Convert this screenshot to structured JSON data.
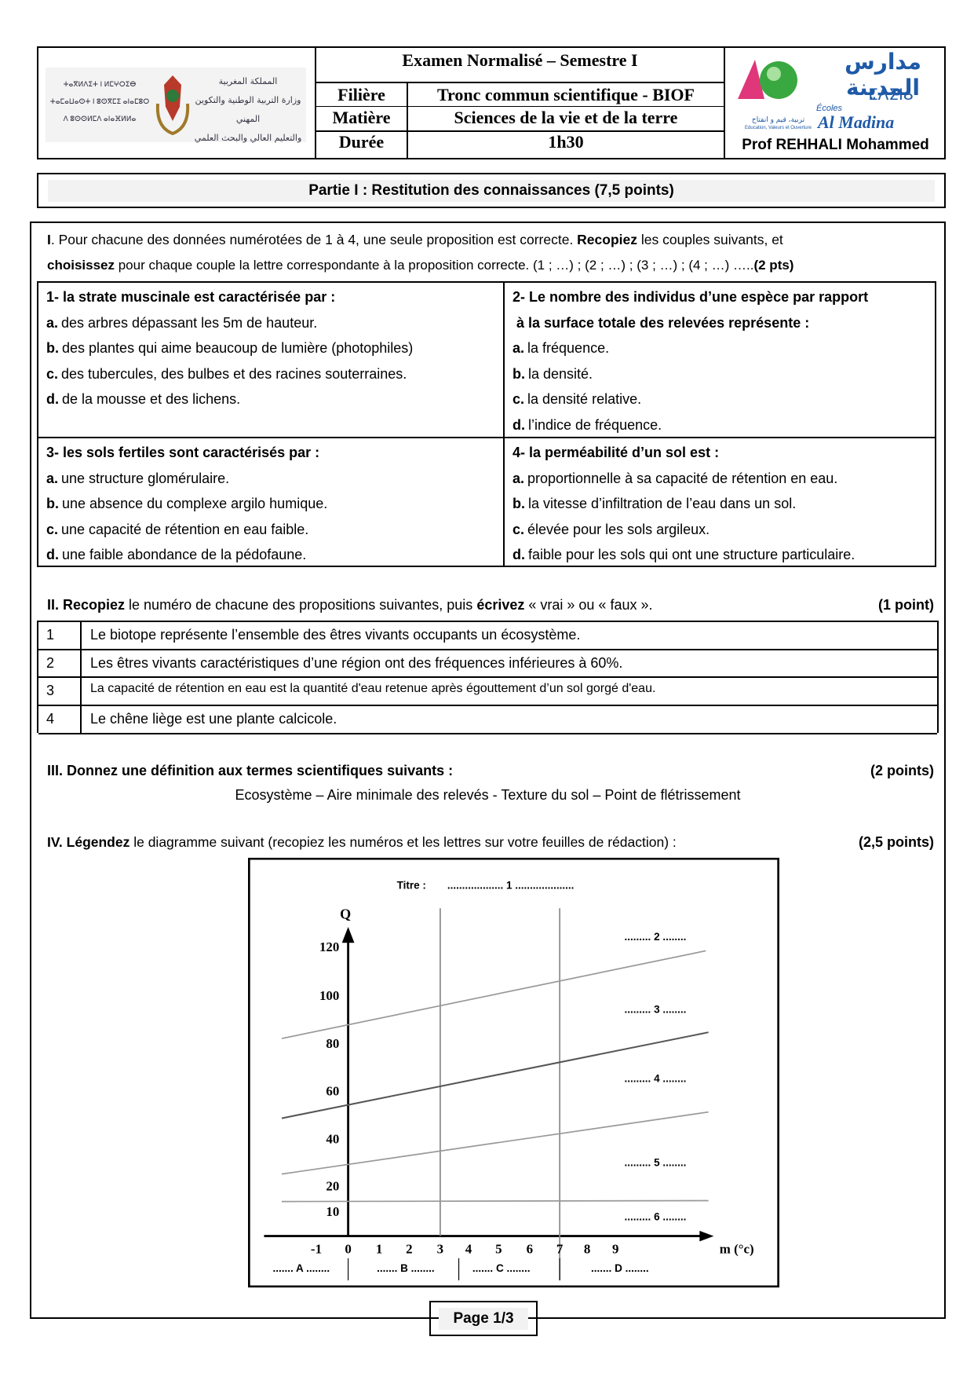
{
  "header": {
    "ministry_logo": {
      "arabic": [
        "المملكة المغربية",
        "وزارة التربية الوطنية والتكوين المهني",
        "والتعليم العالي والبحث العلمي"
      ],
      "tifinagh": [
        "ⵜⴰⴳⵍⴷⵉⵜ ⵏ ⵍⵎⵖⵔⵉⴱ",
        "ⵜⴰⵎⴰⵡⴰⵙⵜ ⵏ ⵓⵙⴳⵎⵉ ⴰⵏⴰⵎⵓⵔ",
        "ⴷ ⵓⵙⵙⵍⵎⴷ ⴰⵏⴰⴼⵍⵍⴰ"
      ]
    },
    "title": "Examen Normalisé – Semestre I",
    "rows": [
      [
        "Filière",
        "Tronc commun scientifique - BIOF"
      ],
      [
        "Matière",
        "Sciences de la vie et de la terre"
      ],
      [
        "Durée",
        "1h30"
      ]
    ],
    "school_logo": {
      "arabic": "مدارس المدينة",
      "tifinagh": "ⵎⴷⵉⵏⴰ",
      "ecoles": "Écoles",
      "name": "Al Madina",
      "motto_ar": "تربية، قيم و انفتاح",
      "motto_fr": "Education, Valeurs et Ouverture"
    },
    "teacher": "Prof REHHALI Mohammed"
  },
  "part_title": "Partie I : Restitution des connaissances (7,5 points)",
  "exercise_1": {
    "intro": [
      "I",
      ". Pour chacune des données numérotées de 1 à 4, une seule proposition est correcte.  ",
      "Recopiez",
      " les couples suivants, et",
      "choisissez",
      " pour chaque couple la lettre correspondante à la proposition correcte. (1 ; …) ; (2 ; …) ; (3 ; …) ; (4 ; …) …..",
      "(2 pts)"
    ],
    "questions": [
      {
        "stem": [
          "1- la strate muscinale est caractérisée par :"
        ],
        "options": [
          [
            "a.",
            "des arbres dépassant les 5m de hauteur."
          ],
          [
            "b.",
            "des plantes qui aime beaucoup de lumière (photophiles)"
          ],
          [
            "c.",
            "des tubercules, des bulbes et des racines souterraines."
          ],
          [
            "d.",
            "de la mousse et des lichens."
          ]
        ]
      },
      {
        "stem": [
          "2-  Le nombre des individus d’une espèce par rapport",
          "à la surface totale des relevées représente :"
        ],
        "options": [
          [
            "a.",
            "la fréquence."
          ],
          [
            "b.",
            "la densité."
          ],
          [
            "c.",
            "la densité relative."
          ],
          [
            "d.",
            "l’indice de fréquence."
          ]
        ]
      },
      {
        "stem": [
          "3- les sols fertiles sont caractérisés par :"
        ],
        "options": [
          [
            "a.",
            "une structure glomérulaire."
          ],
          [
            "b.",
            "une absence du complexe argilo humique."
          ],
          [
            "c.",
            "une capacité de rétention en eau faible."
          ],
          [
            "d.",
            "une faible abondance de la pédofaune."
          ]
        ]
      },
      {
        "stem": [
          "4-  la perméabilité d’un sol est :"
        ],
        "options": [
          [
            "a.",
            "proportionnelle à sa capacité de rétention en eau."
          ],
          [
            "b.",
            "la vitesse d’infiltration de l’eau dans un sol."
          ],
          [
            "c.",
            "élevée pour les sols argileux."
          ],
          [
            "d.",
            "faible pour les sols qui ont une structure particulaire."
          ]
        ]
      }
    ]
  },
  "exercise_2": {
    "intro": [
      "II. Recopiez",
      " le numéro de chacune des propositions suivantes, puis ",
      "écrivez",
      " « vrai » ou « faux »."
    ],
    "points": "(1 point)",
    "rows": [
      [
        "1",
        "Le biotope représente l’ensemble des êtres vivants occupants un écosystème."
      ],
      [
        "2",
        "Les êtres vivants caractéristiques d’une région ont des fréquences inférieures à 60%."
      ],
      [
        "3",
        "La capacité de rétention en eau est la quantité d'eau retenue  après égouttement d’un sol gorgé d'eau."
      ],
      [
        "4",
        "Le chêne liège est une plante calcicole."
      ]
    ]
  },
  "exercise_3": {
    "intro": "III. Donnez une définition aux termes scientifiques suivants :",
    "points": "(2 points)",
    "terms": "Ecosystème – Aire minimale des relevés - Texture du sol – Point de flétrissement"
  },
  "exercise_4": {
    "intro": [
      "IV. Légendez",
      " le diagramme suivant (recopiez les numéros et les lettres sur votre feuilles de rédaction) :"
    ],
    "points": "(2,5 points)",
    "diagram": {
      "title_label": "Titre :",
      "title_blank": "................... 1 ....................",
      "y_label": "Q",
      "x_label": "m (°c)",
      "y_ticks": [
        "120",
        "100",
        "80",
        "60",
        "40",
        "20",
        "10"
      ],
      "x_ticks": [
        "-1",
        "0",
        "1",
        "2",
        "3",
        "4",
        "5",
        "6",
        "7",
        "8",
        "9"
      ],
      "line_labels": [
        "......... 2 ........",
        "......... 3 ........",
        "......... 4 ........",
        "......... 5 ........",
        "......... 6 ........"
      ],
      "zones": [
        "....... A ........",
        "....... B ........",
        "....... C ........",
        "....... D ........"
      ]
    }
  },
  "footer": {
    "page": "Page 1/3"
  }
}
